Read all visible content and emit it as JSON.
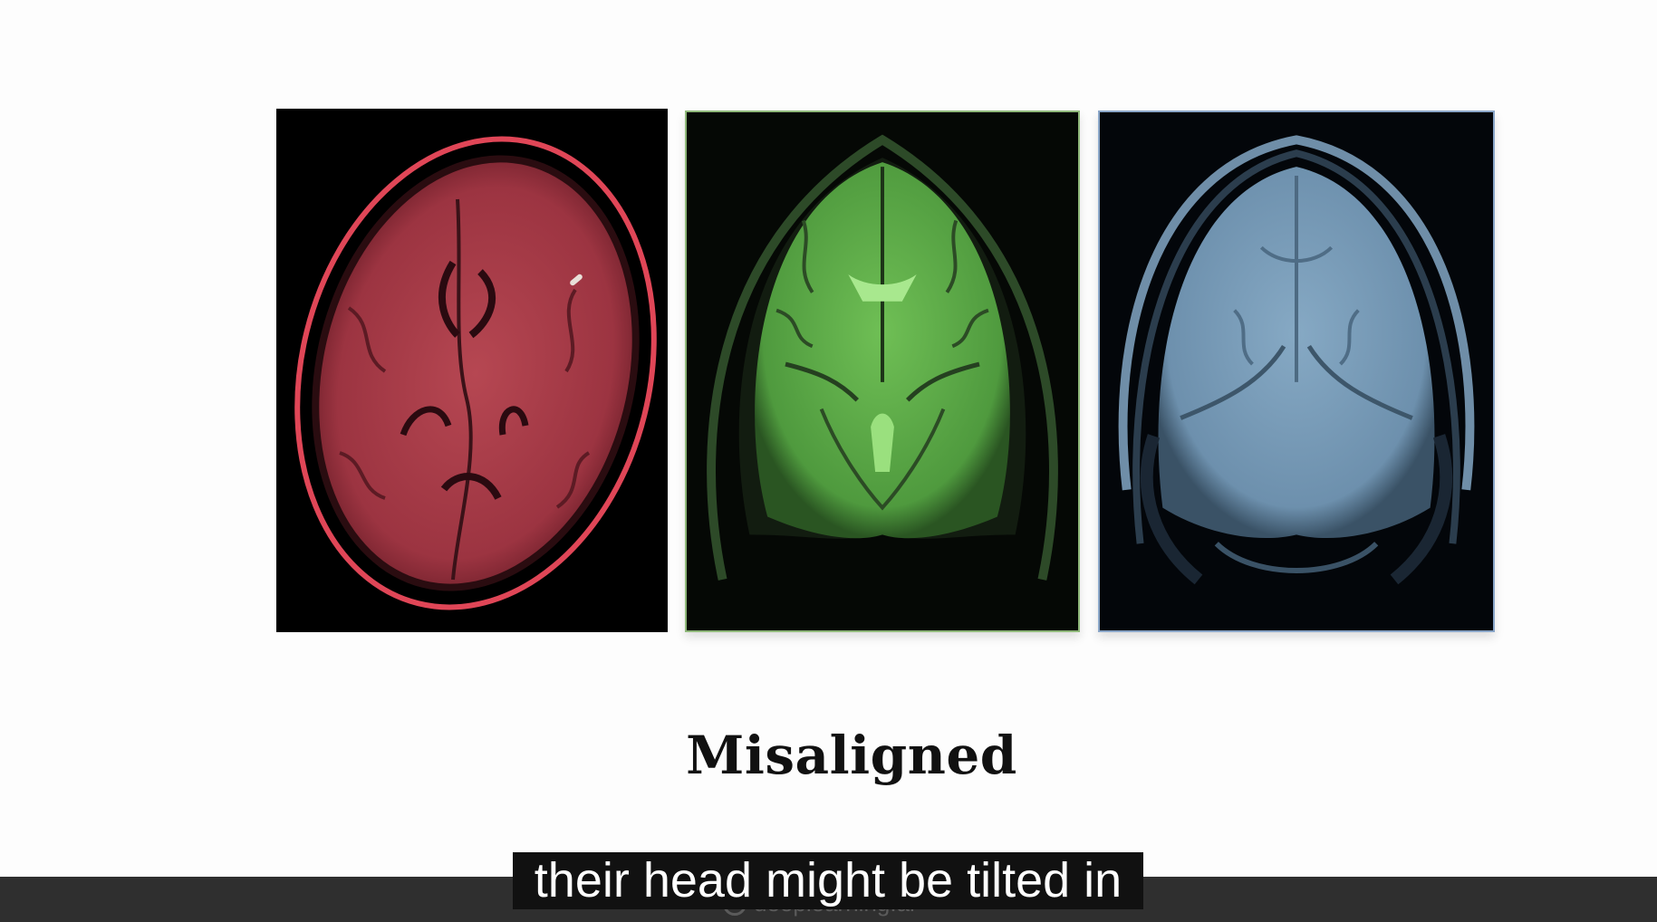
{
  "slide": {
    "title": "Misaligned",
    "images": [
      {
        "modality_tint": "#b8404e",
        "name": "red-axial-mri"
      },
      {
        "modality_tint": "#6fbf55",
        "name": "green-coronal-mri"
      },
      {
        "modality_tint": "#7ea3c0",
        "name": "blue-coronal-mri"
      }
    ]
  },
  "player": {
    "caption": "their head might be tilted in",
    "watermark": "deeplearning.ai"
  }
}
